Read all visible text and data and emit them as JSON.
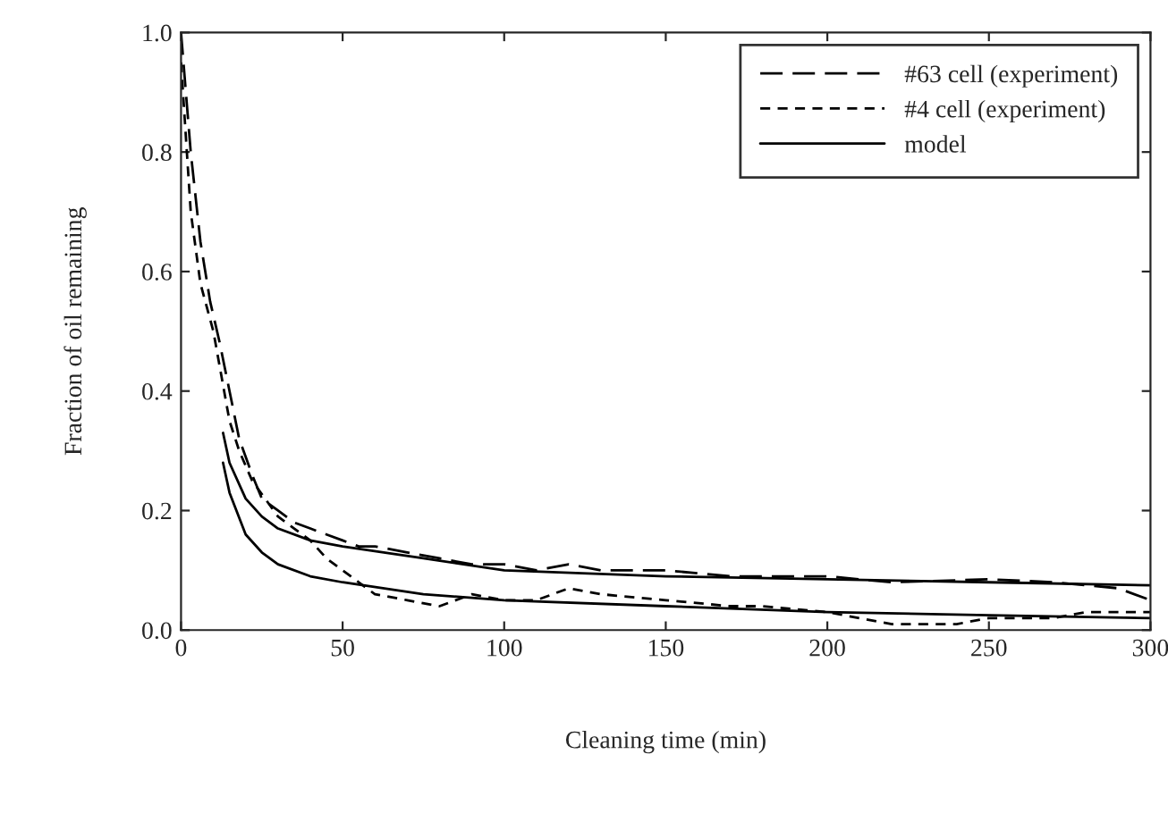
{
  "chart_data": {
    "type": "line",
    "xlabel": "Cleaning time (min)",
    "ylabel": "Fraction of oil remaining",
    "xlim": [
      0,
      300
    ],
    "xticks": [
      0,
      50,
      100,
      150,
      200,
      250,
      300
    ],
    "ylim": [
      0,
      1.0
    ],
    "yticks": [
      {
        "value": 0,
        "label": "0.0"
      },
      {
        "value": 0.2,
        "label": "0.2"
      },
      {
        "value": 0.4,
        "label": "0.4"
      },
      {
        "value": 0.6,
        "label": "0.6"
      },
      {
        "value": 0.8,
        "label": "0.8"
      },
      {
        "value": 1.0,
        "label": "1.0"
      }
    ],
    "legend": "top right",
    "grid": false,
    "series": [
      {
        "name": "#63 cell (experiment)",
        "color": "#000000",
        "line_style": "dashed",
        "x": [
          0,
          3,
          6,
          9,
          12,
          15,
          18,
          22,
          25,
          30,
          35,
          40,
          45,
          50,
          55,
          60,
          70,
          80,
          90,
          100,
          110,
          120,
          130,
          150,
          170,
          200,
          220,
          250,
          270,
          290,
          300
        ],
        "values": [
          1.0,
          0.8,
          0.65,
          0.55,
          0.48,
          0.4,
          0.32,
          0.26,
          0.22,
          0.2,
          0.18,
          0.17,
          0.16,
          0.15,
          0.14,
          0.14,
          0.13,
          0.12,
          0.11,
          0.11,
          0.1,
          0.11,
          0.1,
          0.1,
          0.09,
          0.09,
          0.08,
          0.085,
          0.08,
          0.07,
          0.05
        ]
      },
      {
        "name": "#4 cell (experiment)",
        "color": "#000000",
        "line_style": "dotted",
        "x": [
          0,
          3,
          6,
          10,
          15,
          18,
          22,
          26,
          30,
          35,
          40,
          45,
          50,
          55,
          60,
          70,
          80,
          90,
          100,
          110,
          120,
          130,
          150,
          170,
          180,
          200,
          210,
          220,
          240,
          250,
          270,
          280,
          300
        ],
        "values": [
          0.95,
          0.7,
          0.58,
          0.5,
          0.35,
          0.3,
          0.25,
          0.22,
          0.19,
          0.17,
          0.15,
          0.12,
          0.1,
          0.08,
          0.06,
          0.05,
          0.04,
          0.06,
          0.05,
          0.05,
          0.07,
          0.06,
          0.05,
          0.04,
          0.04,
          0.03,
          0.02,
          0.01,
          0.01,
          0.02,
          0.02,
          0.03,
          0.03
        ]
      },
      {
        "name": "model",
        "color": "#000000",
        "line_style": "solid",
        "x": [
          13,
          15,
          20,
          25,
          30,
          40,
          50,
          75,
          100,
          150,
          200,
          250,
          300
        ],
        "values": [
          0.33,
          0.28,
          0.22,
          0.19,
          0.17,
          0.15,
          0.14,
          0.12,
          0.1,
          0.09,
          0.085,
          0.08,
          0.075
        ]
      },
      {
        "color": "#000000",
        "line_style": "solid",
        "x": [
          13,
          15,
          20,
          25,
          30,
          40,
          50,
          75,
          100,
          150,
          200,
          250,
          300
        ],
        "values": [
          0.28,
          0.23,
          0.16,
          0.13,
          0.11,
          0.09,
          0.08,
          0.06,
          0.05,
          0.04,
          0.03,
          0.025,
          0.02
        ]
      }
    ]
  }
}
